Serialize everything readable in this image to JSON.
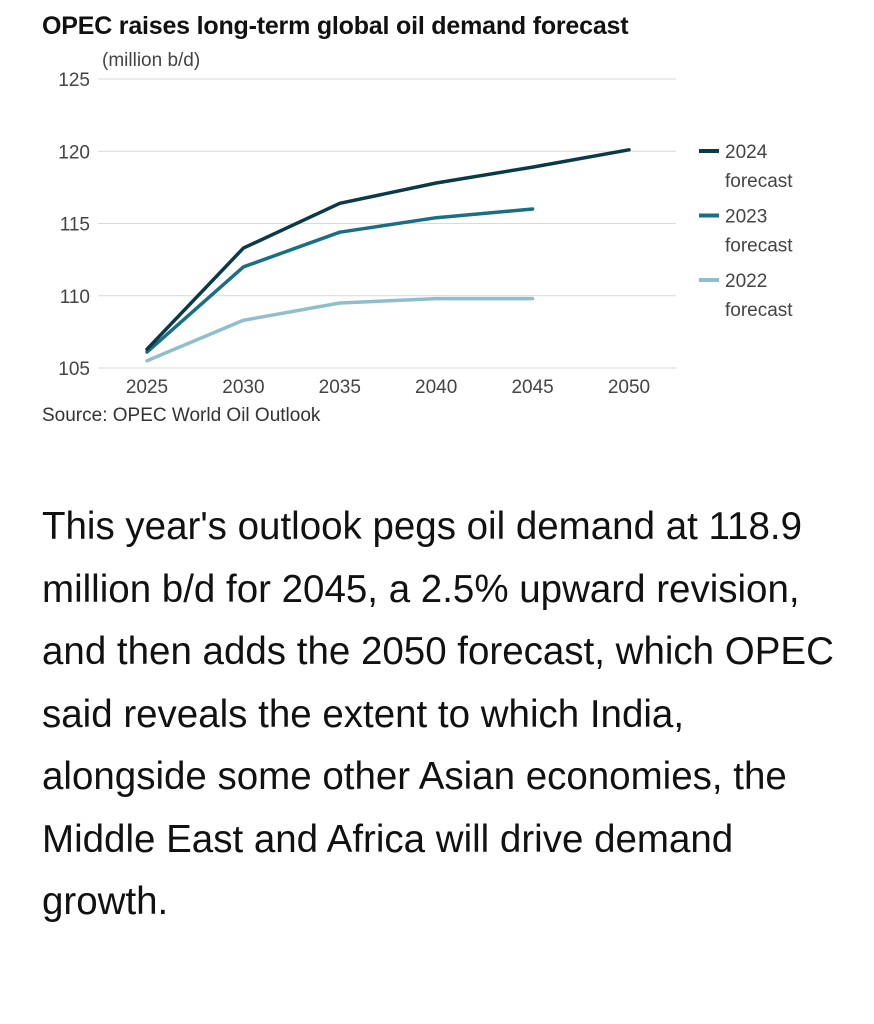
{
  "chart_data": {
    "type": "line",
    "title": "OPEC raises long-term global oil demand forecast",
    "ylabel": "(million b/d)",
    "xlabel": "",
    "x": [
      2025,
      2030,
      2035,
      2040,
      2045,
      2050
    ],
    "xlim": [
      2025,
      2050
    ],
    "ylim": [
      105,
      125
    ],
    "yticks": [
      125,
      120,
      115,
      110,
      105
    ],
    "xticks": [
      2025,
      2030,
      2035,
      2040,
      2045,
      2050
    ],
    "grid": true,
    "legend_position": "right",
    "series": [
      {
        "name": "2024 forecast",
        "name_line1": "2024",
        "name_line2": "forecast",
        "color": "#0a3a47",
        "x": [
          2025,
          2030,
          2035,
          2040,
          2045,
          2050
        ],
        "values": [
          106.3,
          113.3,
          116.4,
          117.8,
          118.9,
          120.1
        ]
      },
      {
        "name": "2023 forecast",
        "name_line1": "2023",
        "name_line2": "forecast",
        "color": "#1a6e86",
        "x": [
          2025,
          2030,
          2035,
          2040,
          2045
        ],
        "values": [
          106.1,
          112.0,
          114.4,
          115.4,
          116.0
        ]
      },
      {
        "name": "2022 forecast",
        "name_line1": "2022",
        "name_line2": "forecast",
        "color": "#8fbfcd",
        "x": [
          2025,
          2030,
          2035,
          2040,
          2045
        ],
        "values": [
          105.5,
          108.3,
          109.5,
          109.8,
          109.8
        ]
      }
    ],
    "source": "Source: OPEC World Oil Outlook"
  },
  "article": {
    "paragraph": "This year's outlook pegs oil demand at 118.9 million b/d for 2045, a 2.5% upward revision, and then adds the 2050 forecast, which OPEC said reveals the extent to which India, alongside some other Asian economies, the Middle East and Africa will drive demand growth."
  }
}
